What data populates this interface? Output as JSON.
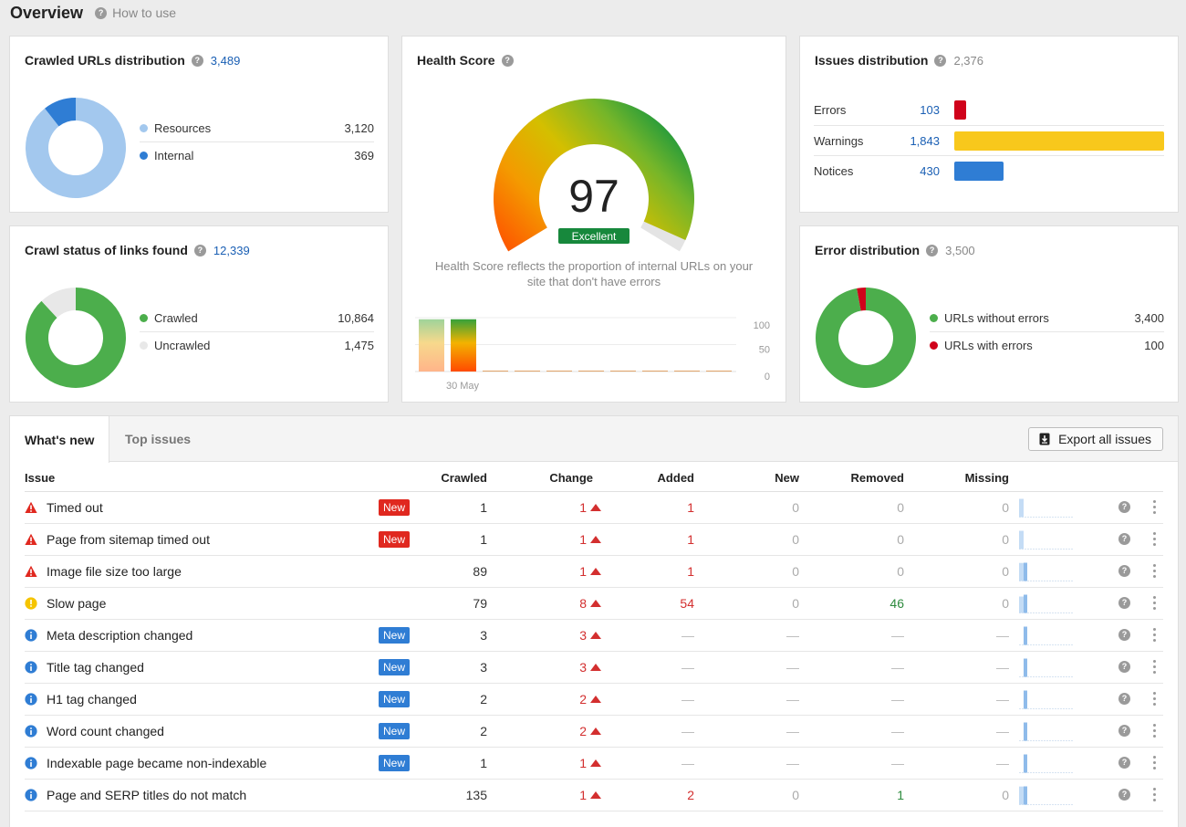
{
  "header": {
    "title": "Overview",
    "help_label": "How to use"
  },
  "colors": {
    "resources": "#a3c8ee",
    "internal": "#2f7dd4",
    "crawled": "#4cae4c",
    "uncrawled": "#e8e8e8",
    "errors": "#d0021b",
    "warnings": "#f8c81c",
    "notices": "#2f7dd4",
    "without_errors": "#4cae4c",
    "with_errors": "#d0021b",
    "new_badge_red": "#e0281f",
    "new_badge_blue": "#2f7dd4"
  },
  "crawled_urls": {
    "title": "Crawled URLs distribution",
    "total": "3,489",
    "items": [
      {
        "label": "Resources",
        "value": "3,120",
        "count": 3120,
        "color": "#a3c8ee"
      },
      {
        "label": "Internal",
        "value": "369",
        "count": 369,
        "color": "#2f7dd4"
      }
    ]
  },
  "crawl_status": {
    "title": "Crawl status of links found",
    "total": "12,339",
    "items": [
      {
        "label": "Crawled",
        "value": "10,864",
        "count": 10864,
        "color": "#4cae4c"
      },
      {
        "label": "Uncrawled",
        "value": "1,475",
        "count": 1475,
        "color": "#e8e8e8"
      }
    ]
  },
  "health": {
    "title": "Health Score",
    "score": "97",
    "score_value": 97,
    "rating": "Excellent",
    "description_line1": "Health Score reflects the proportion of internal URLs on your",
    "description_line2": "site that don't have errors",
    "chart_data": {
      "type": "bar",
      "y_ticks": [
        "100",
        "50",
        "0"
      ],
      "ylim": [
        0,
        100
      ],
      "x_label": "30 May",
      "values": [
        97,
        97,
        0,
        0,
        0,
        0,
        0,
        0,
        0,
        0
      ]
    }
  },
  "issues_dist": {
    "title": "Issues distribution",
    "total": "2,376",
    "items": [
      {
        "label": "Errors",
        "value": "103",
        "count": 103,
        "color": "#d0021b"
      },
      {
        "label": "Warnings",
        "value": "1,843",
        "count": 1843,
        "color": "#f8c81c"
      },
      {
        "label": "Notices",
        "value": "430",
        "count": 430,
        "color": "#2f7dd4"
      }
    ]
  },
  "error_dist": {
    "title": "Error distribution",
    "total": "3,500",
    "items": [
      {
        "label": "URLs without errors",
        "value": "3,400",
        "count": 3400,
        "color": "#4cae4c"
      },
      {
        "label": "URLs with errors",
        "value": "100",
        "count": 100,
        "color": "#d0021b"
      }
    ]
  },
  "tabs": {
    "active": "What's new",
    "inactive": "Top issues",
    "export_label": "Export all issues"
  },
  "table": {
    "columns": {
      "issue": "Issue",
      "crawled": "Crawled",
      "change": "Change",
      "added": "Added",
      "new": "New",
      "removed": "Removed",
      "missing": "Missing"
    },
    "new_badge": "New",
    "dash": "—",
    "rows": [
      {
        "severity": "error",
        "name": "Timed out",
        "badge": "red",
        "crawled": "1",
        "change": "1",
        "added": "1",
        "new": "0",
        "removed": "0",
        "missing": "0",
        "spark": [
          5,
          0
        ]
      },
      {
        "severity": "error",
        "name": "Page from sitemap timed out",
        "badge": "red",
        "crawled": "1",
        "change": "1",
        "added": "1",
        "new": "0",
        "removed": "0",
        "missing": "0",
        "spark": [
          5,
          0
        ]
      },
      {
        "severity": "error",
        "name": "Image file size too large",
        "badge": "",
        "crawled": "89",
        "change": "1",
        "added": "1",
        "new": "0",
        "removed": "0",
        "missing": "0",
        "spark": [
          88,
          89
        ]
      },
      {
        "severity": "warning",
        "name": "Slow page",
        "badge": "",
        "crawled": "79",
        "change": "8",
        "added": "54",
        "new": "0",
        "removed": "46",
        "missing": "0",
        "spark": [
          71,
          79
        ]
      },
      {
        "severity": "notice",
        "name": "Meta description changed",
        "badge": "blue",
        "crawled": "3",
        "change": "3",
        "added": "",
        "new": "",
        "removed": "",
        "missing": "",
        "spark": [
          0,
          3
        ]
      },
      {
        "severity": "notice",
        "name": "Title tag changed",
        "badge": "blue",
        "crawled": "3",
        "change": "3",
        "added": "",
        "new": "",
        "removed": "",
        "missing": "",
        "spark": [
          0,
          3
        ]
      },
      {
        "severity": "notice",
        "name": "H1 tag changed",
        "badge": "blue",
        "crawled": "2",
        "change": "2",
        "added": "",
        "new": "",
        "removed": "",
        "missing": "",
        "spark": [
          0,
          2
        ]
      },
      {
        "severity": "notice",
        "name": "Word count changed",
        "badge": "blue",
        "crawled": "2",
        "change": "2",
        "added": "",
        "new": "",
        "removed": "",
        "missing": "",
        "spark": [
          0,
          2
        ]
      },
      {
        "severity": "notice",
        "name": "Indexable page became non-indexable",
        "badge": "blue",
        "crawled": "1",
        "change": "1",
        "added": "",
        "new": "",
        "removed": "",
        "missing": "",
        "spark": [
          0,
          1
        ]
      },
      {
        "severity": "notice",
        "name": "Page and SERP titles do not match",
        "badge": "",
        "crawled": "135",
        "change": "1",
        "added": "2",
        "new": "0",
        "removed": "1",
        "missing": "0",
        "spark": [
          134,
          135
        ]
      }
    ]
  }
}
